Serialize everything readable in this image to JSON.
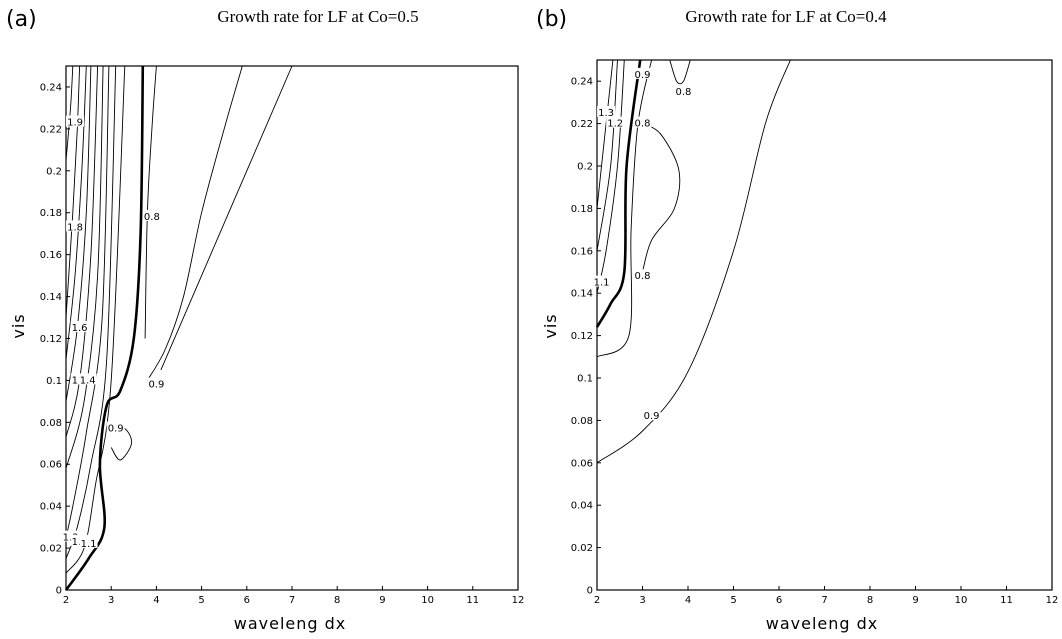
{
  "chart_data": [
    {
      "type": "contour",
      "panel_label": "(a)",
      "title": "Growth rate for LF at Co=0.5",
      "xlabel": "waveleng dx",
      "ylabel": "vis",
      "xlim": [
        2,
        12
      ],
      "ylim": [
        0,
        0.25
      ],
      "xticks": [
        2,
        3,
        4,
        5,
        6,
        7,
        8,
        9,
        10,
        11,
        12
      ],
      "yticks": [
        0,
        0.02,
        0.04,
        0.06,
        0.08,
        0.1,
        0.12,
        0.14,
        0.16,
        0.18,
        0.2,
        0.22,
        0.24
      ],
      "contour_levels": [
        0.8,
        0.9,
        1.0,
        1.1,
        1.2,
        1.3,
        1.4,
        1.5,
        1.6,
        1.7,
        1.8,
        1.9
      ],
      "bold_level": 1.0,
      "contours": [
        {
          "level": 1.9,
          "points": [
            [
              2.0,
              0.205
            ],
            [
              2.1,
              0.23
            ],
            [
              2.15,
              0.25
            ]
          ]
        },
        {
          "level": 1.8,
          "points": [
            [
              2.0,
              0.13
            ],
            [
              2.15,
              0.18
            ],
            [
              2.25,
              0.22
            ],
            [
              2.3,
              0.25
            ]
          ]
        },
        {
          "level": 1.7,
          "points": [
            [
              2.0,
              0.11
            ],
            [
              2.2,
              0.15
            ],
            [
              2.35,
              0.2
            ],
            [
              2.45,
              0.25
            ]
          ]
        },
        {
          "level": 1.6,
          "points": [
            [
              2.0,
              0.09
            ],
            [
              2.25,
              0.125
            ],
            [
              2.45,
              0.18
            ],
            [
              2.55,
              0.25
            ]
          ]
        },
        {
          "level": 1.5,
          "points": [
            [
              2.0,
              0.073
            ],
            [
              2.3,
              0.1
            ],
            [
              2.55,
              0.16
            ],
            [
              2.7,
              0.25
            ]
          ]
        },
        {
          "level": 1.4,
          "points": [
            [
              2.0,
              0.058
            ],
            [
              2.4,
              0.09
            ],
            [
              2.7,
              0.15
            ],
            [
              2.82,
              0.25
            ]
          ]
        },
        {
          "level": 1.3,
          "points": [
            [
              2.0,
              0.025
            ],
            [
              2.15,
              0.04
            ],
            [
              2.45,
              0.075
            ],
            [
              2.8,
              0.13
            ],
            [
              2.95,
              0.25
            ]
          ]
        },
        {
          "level": 1.2,
          "points": [
            [
              2.0,
              0.015
            ],
            [
              2.25,
              0.03
            ],
            [
              2.55,
              0.06
            ],
            [
              2.9,
              0.11
            ],
            [
              3.1,
              0.25
            ]
          ]
        },
        {
          "level": 1.1,
          "points": [
            [
              2.0,
              0.008
            ],
            [
              2.4,
              0.02
            ],
            [
              2.65,
              0.05
            ],
            [
              3.0,
              0.1
            ],
            [
              3.3,
              0.25
            ]
          ]
        },
        {
          "level": 1.0,
          "points": [
            [
              2.0,
              0.0
            ],
            [
              2.5,
              0.015
            ],
            [
              2.85,
              0.03
            ],
            [
              2.75,
              0.06
            ],
            [
              2.9,
              0.088
            ],
            [
              3.2,
              0.095
            ],
            [
              3.5,
              0.12
            ],
            [
              3.65,
              0.17
            ],
            [
              3.7,
              0.25
            ]
          ]
        },
        {
          "level": 0.8,
          "points": [
            [
              3.75,
              0.12
            ],
            [
              3.8,
              0.18
            ],
            [
              3.9,
              0.22
            ],
            [
              4.0,
              0.25
            ]
          ]
        },
        {
          "level": 0.9,
          "points": [
            [
              3.8,
              0.1
            ],
            [
              4.2,
              0.115
            ],
            [
              4.6,
              0.14
            ],
            [
              5.0,
              0.18
            ],
            [
              5.5,
              0.22
            ],
            [
              5.9,
              0.25
            ]
          ]
        },
        {
          "level": 0.9,
          "points": [
            [
              4.1,
              0.105
            ],
            [
              5.0,
              0.15
            ],
            [
              6.0,
              0.2
            ],
            [
              7.0,
              0.25
            ]
          ]
        },
        {
          "level": 0.9,
          "points": [
            [
              3.0,
              0.077
            ],
            [
              3.3,
              0.077
            ],
            [
              3.45,
              0.07
            ],
            [
              3.2,
              0.062
            ],
            [
              3.0,
              0.068
            ]
          ]
        }
      ],
      "labels": [
        {
          "text": "1.9",
          "x": 2.2,
          "y": 0.223
        },
        {
          "text": "1.8",
          "x": 2.2,
          "y": 0.173
        },
        {
          "text": "1.6",
          "x": 2.3,
          "y": 0.125
        },
        {
          "text": "1.5",
          "x": 2.3,
          "y": 0.1
        },
        {
          "text": "1.4",
          "x": 2.48,
          "y": 0.1
        },
        {
          "text": "1.3",
          "x": 2.1,
          "y": 0.025
        },
        {
          "text": "1.2",
          "x": 2.3,
          "y": 0.023
        },
        {
          "text": "1.1",
          "x": 2.5,
          "y": 0.022
        },
        {
          "text": "0.8",
          "x": 3.9,
          "y": 0.178
        },
        {
          "text": "0.9",
          "x": 4.0,
          "y": 0.098
        },
        {
          "text": "0.9",
          "x": 3.1,
          "y": 0.077
        }
      ]
    },
    {
      "type": "contour",
      "panel_label": "(b)",
      "title": "Growth rate for LF at Co=0.4",
      "xlabel": "waveleng dx",
      "ylabel": "vis",
      "xlim": [
        2,
        12
      ],
      "ylim": [
        0,
        0.25
      ],
      "xticks": [
        2,
        3,
        4,
        5,
        6,
        7,
        8,
        9,
        10,
        11,
        12
      ],
      "yticks": [
        0,
        0.02,
        0.04,
        0.06,
        0.08,
        0.1,
        0.12,
        0.14,
        0.16,
        0.18,
        0.2,
        0.22,
        0.24
      ],
      "contour_levels": [
        0.8,
        0.9,
        1.0,
        1.1,
        1.2,
        1.3
      ],
      "bold_level": 1.0,
      "contours": [
        {
          "level": 1.3,
          "points": [
            [
              2.0,
              0.18
            ],
            [
              2.2,
              0.22
            ],
            [
              2.35,
              0.25
            ]
          ]
        },
        {
          "level": 1.2,
          "points": [
            [
              2.0,
              0.16
            ],
            [
              2.3,
              0.2
            ],
            [
              2.45,
              0.25
            ]
          ]
        },
        {
          "level": 1.1,
          "points": [
            [
              2.0,
              0.14
            ],
            [
              2.2,
              0.16
            ],
            [
              2.45,
              0.2
            ],
            [
              2.6,
              0.25
            ]
          ]
        },
        {
          "level": 1.0,
          "points": [
            [
              2.0,
              0.124
            ],
            [
              2.3,
              0.135
            ],
            [
              2.6,
              0.15
            ],
            [
              2.65,
              0.2
            ],
            [
              2.95,
              0.25
            ]
          ]
        },
        {
          "level": 0.9,
          "points": [
            [
              2.0,
              0.11
            ],
            [
              2.7,
              0.12
            ],
            [
              2.75,
              0.17
            ],
            [
              2.9,
              0.22
            ],
            [
              3.2,
              0.25
            ]
          ]
        },
        {
          "level": 0.8,
          "points": [
            [
              3.0,
              0.22
            ],
            [
              3.4,
              0.215
            ],
            [
              3.8,
              0.198
            ],
            [
              3.7,
              0.18
            ],
            [
              3.2,
              0.165
            ],
            [
              3.0,
              0.15
            ]
          ]
        },
        {
          "level": 0.8,
          "points": [
            [
              3.6,
              0.25
            ],
            [
              3.75,
              0.24
            ],
            [
              3.9,
              0.24
            ],
            [
              4.05,
              0.25
            ]
          ]
        },
        {
          "level": 0.9,
          "points": [
            [
              2.0,
              0.06
            ],
            [
              3.0,
              0.075
            ],
            [
              4.0,
              0.103
            ],
            [
              5.0,
              0.16
            ],
            [
              5.7,
              0.22
            ],
            [
              6.25,
              0.25
            ]
          ]
        }
      ],
      "labels": [
        {
          "text": "1.3",
          "x": 2.2,
          "y": 0.225
        },
        {
          "text": "1.2",
          "x": 2.4,
          "y": 0.22
        },
        {
          "text": "1.1",
          "x": 2.1,
          "y": 0.145
        },
        {
          "text": "0.9",
          "x": 3.0,
          "y": 0.243
        },
        {
          "text": "0.8",
          "x": 3.9,
          "y": 0.235
        },
        {
          "text": "0.8",
          "x": 3.0,
          "y": 0.22
        },
        {
          "text": "0.8",
          "x": 3.0,
          "y": 0.148
        },
        {
          "text": "0.9",
          "x": 3.2,
          "y": 0.082
        }
      ]
    }
  ]
}
